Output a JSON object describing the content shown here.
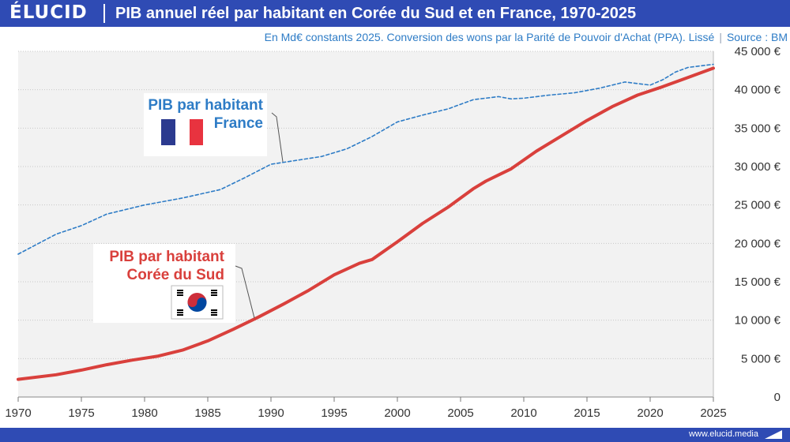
{
  "header": {
    "logo": "ÉLUCID",
    "title": "PIB annuel réel par habitant en Corée du Sud et en France, 1970-2025"
  },
  "subtitle": {
    "text": "En Md€ constants 2025. Conversion des wons par la Parité de Pouvoir d'Achat (PPA). Lissé",
    "source": "Source : BM"
  },
  "footer": {
    "url": "www.elucid.media"
  },
  "colors": {
    "france": "#2e7cc6",
    "korea": "#d9403c",
    "brand": "#2f4bb4"
  },
  "icons": [
    "france-flag-icon",
    "south-korea-flag-icon",
    "elucid-mark-icon"
  ],
  "chart_data": {
    "type": "line",
    "title": "PIB annuel réel par habitant en Corée du Sud et en France, 1970-2025",
    "xlabel": "",
    "ylabel": "",
    "xlim": [
      1970,
      2025
    ],
    "ylim": [
      0,
      45000
    ],
    "x_ticks": [
      1970,
      1975,
      1980,
      1985,
      1990,
      1995,
      2000,
      2005,
      2010,
      2015,
      2020,
      2025
    ],
    "y_ticks": [
      0,
      5000,
      10000,
      15000,
      20000,
      25000,
      30000,
      35000,
      40000,
      45000
    ],
    "y_tick_labels": [
      "0",
      "5 000 €",
      "10 000 €",
      "15 000 €",
      "20 000 €",
      "25 000 €",
      "30 000 €",
      "35 000 €",
      "40 000 €",
      "45 000 €"
    ],
    "grid": true,
    "legend": "inline labels",
    "series": [
      {
        "label": [
          "PIB par habitant",
          "France"
        ],
        "style": "dashed",
        "x": [
          1970,
          1973,
          1975,
          1977,
          1980,
          1983,
          1986,
          1988,
          1990,
          1992,
          1994,
          1996,
          1998,
          2000,
          2002,
          2004,
          2006,
          2008,
          2009,
          2010,
          2012,
          2014,
          2016,
          2018,
          2019,
          2020,
          2021,
          2022,
          2023,
          2025
        ],
        "values": [
          18600,
          21200,
          22300,
          23800,
          25000,
          25900,
          27000,
          28600,
          30300,
          30800,
          31300,
          32300,
          33900,
          35800,
          36700,
          37500,
          38700,
          39100,
          38800,
          38900,
          39300,
          39600,
          40200,
          41000,
          40800,
          40600,
          41300,
          42300,
          42900,
          43300
        ]
      },
      {
        "label": [
          "PIB par habitant",
          "Corée du Sud"
        ],
        "style": "solid",
        "x": [
          1970,
          1973,
          1975,
          1977,
          1979,
          1981,
          1983,
          1985,
          1987,
          1989,
          1991,
          1993,
          1995,
          1997,
          1998,
          2000,
          2002,
          2004,
          2006,
          2007,
          2009,
          2011,
          2013,
          2015,
          2017,
          2019,
          2021,
          2023,
          2025
        ],
        "values": [
          2300,
          2900,
          3500,
          4200,
          4800,
          5300,
          6100,
          7300,
          8800,
          10400,
          12100,
          13900,
          15900,
          17400,
          17900,
          20200,
          22600,
          24700,
          27100,
          28100,
          29700,
          32000,
          34000,
          36000,
          37800,
          39300,
          40400,
          41600,
          42800
        ]
      }
    ]
  }
}
